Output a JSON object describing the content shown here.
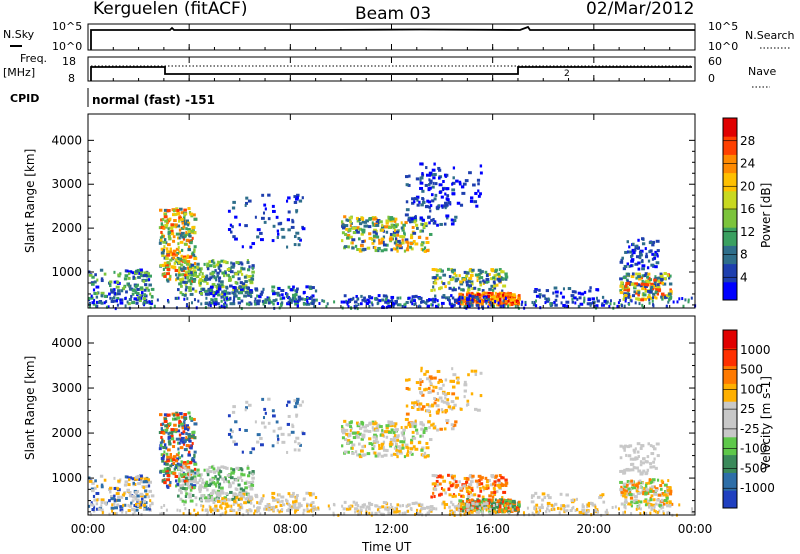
{
  "header": {
    "station": "Kerguelen (fitACF)",
    "beam": "Beam 03",
    "date": "02/Mar/2012"
  },
  "noise_panel": {
    "left_label": "N.Sky",
    "right_label": "N.Search",
    "left_ticks": [
      "10^5",
      "10^0"
    ],
    "right_ticks": [
      "10^5",
      "10^0"
    ]
  },
  "freq_panel": {
    "left_label_line1": "Freq.",
    "left_label_line2": "[MHz]",
    "left_ticks": [
      "18",
      "8"
    ],
    "right_label": "Nave",
    "right_ticks": [
      "60",
      "0"
    ],
    "marker": "2"
  },
  "cpid": {
    "label": "CPID",
    "value": "normal (fast) -151"
  },
  "chart_data": [
    {
      "type": "heatmap",
      "name": "power",
      "ylabel": "Slant Range [km]",
      "xlabel": "",
      "y_ticks": [
        "1000",
        "2000",
        "3000",
        "4000"
      ],
      "ylim": [
        180,
        4600
      ],
      "colorbar_label": "Power [dB]",
      "colorbar_ticks": [
        "28",
        "24",
        "20",
        "16",
        "12",
        "8",
        "4"
      ],
      "colorbar_colors": [
        "#0000ff",
        "#1e3fae",
        "#2e6e8a",
        "#3aa060",
        "#7cc43c",
        "#c8d820",
        "#ffc000",
        "#ff8a00",
        "#ff4000",
        "#e00000"
      ]
    },
    {
      "type": "heatmap",
      "name": "velocity",
      "ylabel": "Slant Range [km]",
      "xlabel": "Time UT",
      "y_ticks": [
        "1000",
        "2000",
        "3000",
        "4000"
      ],
      "ylim": [
        180,
        4600
      ],
      "x_ticks": [
        "00:00",
        "04:00",
        "08:00",
        "12:00",
        "16:00",
        "20:00",
        "00:00"
      ],
      "colorbar_label": "Velocity [m s-1]",
      "colorbar_ticks": [
        "1000",
        "500",
        "100",
        "25",
        "-25",
        "-100",
        "-500",
        "-1000"
      ],
      "colorbar_colors": [
        "#2040c0",
        "#2d6ea8",
        "#3a8a5a",
        "#5ec84a",
        "#c8c8c8",
        "#c8c8c8",
        "#ffb000",
        "#ff7a00",
        "#ff3000",
        "#e00000"
      ]
    }
  ]
}
